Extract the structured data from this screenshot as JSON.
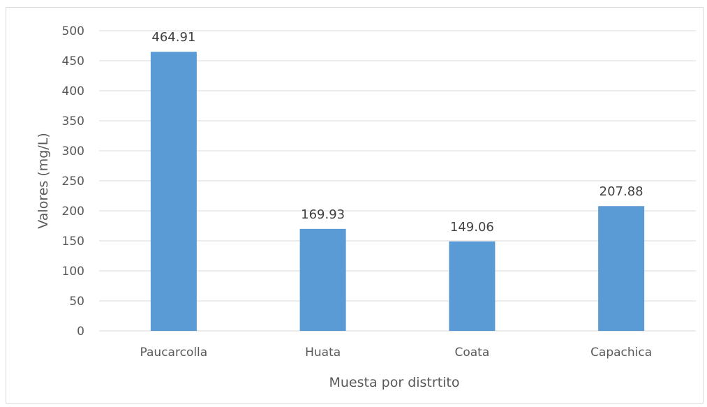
{
  "chart_data": {
    "type": "bar",
    "title": "",
    "xlabel": "Muesta por distrtito",
    "ylabel": "Valores  (mg/L)",
    "categories": [
      "Paucarcolla",
      "Huata",
      "Coata",
      "Capachica"
    ],
    "values": [
      464.91,
      169.93,
      149.06,
      207.88
    ],
    "data_labels": [
      "464.91",
      "169.93",
      "149.06",
      "207.88"
    ],
    "ylim": [
      0,
      500
    ],
    "yticks": [
      0,
      50,
      100,
      150,
      200,
      250,
      300,
      350,
      400,
      450,
      500
    ],
    "grid": true,
    "legend": "none",
    "colors": {
      "bar": "#5b9bd5",
      "grid": "#d9d9d9",
      "text": "#595959"
    }
  }
}
